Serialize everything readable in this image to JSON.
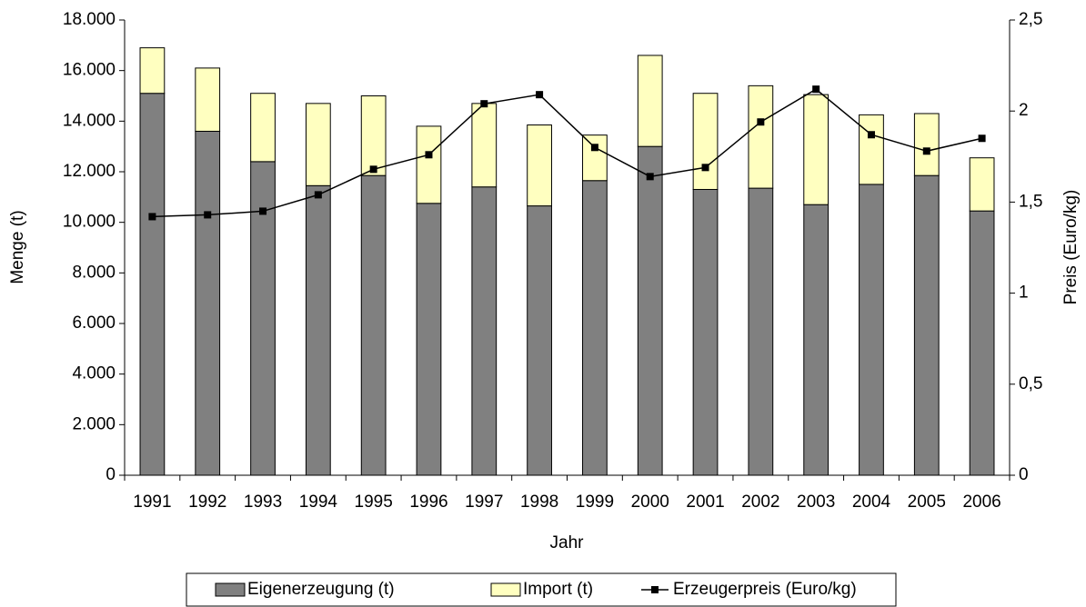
{
  "chart_data": {
    "type": "bar",
    "stacked": true,
    "x_label": "Jahr",
    "y_label": "Menge (t)",
    "y2_label": "Preis (Euro/kg)",
    "categories": [
      "1991",
      "1992",
      "1993",
      "1994",
      "1995",
      "1996",
      "1997",
      "1998",
      "1999",
      "2000",
      "2001",
      "2002",
      "2003",
      "2004",
      "2005",
      "2006"
    ],
    "series": [
      {
        "name": "Eigenerzeugung (t)",
        "type": "bar",
        "color": "#808080",
        "values": [
          15100,
          13600,
          12400,
          11450,
          11850,
          10750,
          11400,
          10650,
          11650,
          13000,
          11300,
          11350,
          10700,
          11500,
          11850,
          10450
        ]
      },
      {
        "name": "Import (t)",
        "type": "bar",
        "color": "#ffffc0",
        "values": [
          1800,
          2500,
          2700,
          3250,
          3150,
          3050,
          3300,
          3200,
          1800,
          3600,
          3800,
          4050,
          4350,
          2750,
          2450,
          2100
        ]
      },
      {
        "name": "Erzeugerpreis (Euro/kg)",
        "type": "line",
        "axis": "y2",
        "color": "#000000",
        "values": [
          1.42,
          1.43,
          1.45,
          1.54,
          1.68,
          1.76,
          2.04,
          2.09,
          1.8,
          1.64,
          1.69,
          1.94,
          2.12,
          1.87,
          1.78,
          1.85
        ]
      }
    ],
    "ylim": [
      0,
      18000
    ],
    "yticks": [
      0,
      {
        "value": 2000,
        "label": "2.000"
      },
      {
        "value": 4000,
        "label": "4.000"
      },
      {
        "value": 6000,
        "label": "6.000"
      },
      {
        "value": 8000,
        "label": "8.000"
      },
      {
        "value": 10000,
        "label": "10.000"
      },
      {
        "value": 12000,
        "label": "12.000"
      },
      {
        "value": 14000,
        "label": "14.000"
      },
      {
        "value": 16000,
        "label": "16.000"
      },
      {
        "value": 18000,
        "label": "18.000"
      }
    ],
    "y2lim": [
      0,
      2.5
    ],
    "y2ticks": [
      0,
      {
        "value": 0.5,
        "label": "0,5"
      },
      1,
      {
        "value": 1.5,
        "label": "1,5"
      },
      2,
      {
        "value": 2.5,
        "label": "2,5"
      }
    ],
    "grid": false,
    "legend": "bottom"
  }
}
